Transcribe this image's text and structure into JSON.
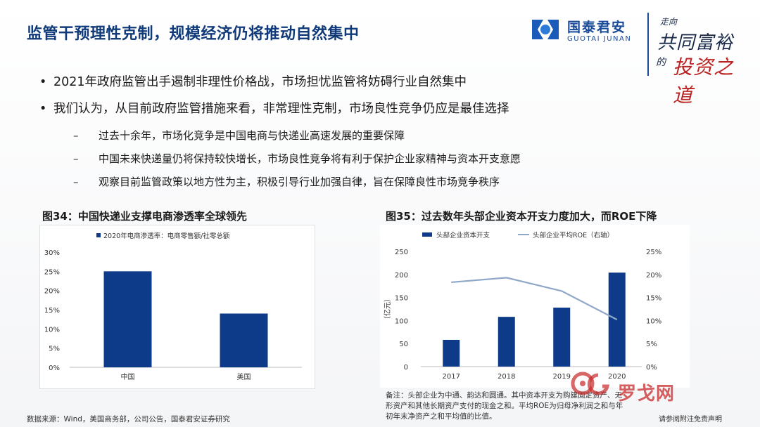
{
  "title": "监管干预理性克制，规模经济仍将推动自然集中",
  "logo": {
    "cn": "国泰君安",
    "en": "GUOTAI JUNAN"
  },
  "slogan": {
    "line1": "走向",
    "line2": "共同富裕",
    "line3": "的",
    "line4": "投资之道"
  },
  "bullets": [
    {
      "level": 1,
      "text": "2021年政府监管出手遏制非理性价格战，市场担忧监管将妨碍行业自然集中"
    },
    {
      "level": 1,
      "text": "我们认为，从目前政府监管措施来看，非常理性克制，市场良性竞争仍应是最佳选择"
    },
    {
      "level": 2,
      "text": "过去十余年，市场化竞争是中国电商与快递业高速发展的重要保障"
    },
    {
      "level": 2,
      "text": "中国未来快递量仍将保持较快增长，市场良性竞争将有利于保护企业家精神与资本开支意愿"
    },
    {
      "level": 2,
      "text": "观察目前监管政策以地方性为主，积极引导行业加强自律，旨在保障良性市场竞争秩序"
    }
  ],
  "fig34": {
    "title": "图34：中国快递业支撑电商渗透率全球领先"
  },
  "fig35": {
    "title": "图35：过去数年头部企业资本开支力度加大，而ROE下降"
  },
  "chart_data": [
    {
      "type": "bar",
      "categories": [
        "中国",
        "美国"
      ],
      "series": [
        {
          "name": "2020年电商渗透率：电商零售额/社零总额",
          "values": [
            25,
            14
          ],
          "color": "#0d3b8a"
        }
      ],
      "ylim": [
        0,
        30
      ],
      "yticks": [
        "0%",
        "5%",
        "10%",
        "15%",
        "20%",
        "25%",
        "30%"
      ],
      "ytick_values": [
        0,
        5,
        10,
        15,
        20,
        25,
        30
      ],
      "legend": "top-left",
      "grid": false
    },
    {
      "type": "bar",
      "categories": [
        "2017",
        "2018",
        "2019",
        "2020"
      ],
      "series": [
        {
          "name": "头部企业资本开支",
          "type": "bar",
          "axis": "left",
          "values": [
            58,
            108,
            128,
            204
          ],
          "color": "#0d3b8a"
        },
        {
          "name": "头部企业平均ROE（右轴）",
          "type": "line",
          "axis": "right",
          "values": [
            18.3,
            19.3,
            16.4,
            10.2
          ],
          "color": "#8fa8c8"
        }
      ],
      "ylabel": "（亿元）",
      "ylim": [
        0,
        250
      ],
      "yticks": [
        "0",
        "50",
        "100",
        "150",
        "200",
        "250"
      ],
      "ytick_values": [
        0,
        50,
        100,
        150,
        200,
        250
      ],
      "y2lim": [
        0,
        25
      ],
      "y2ticks": [
        "0%",
        "5%",
        "10%",
        "15%",
        "20%",
        "25%"
      ],
      "y2tick_values": [
        0,
        5,
        10,
        15,
        20,
        25
      ],
      "legend": "top",
      "grid": false
    }
  ],
  "note": {
    "line1": "备注：头部企业为中通、韵达和圆通。其中资本开支为购建固定资产、无",
    "line2": "形资产和其他长期资产支付的现金之和。平均ROE为归母净利润之和与年",
    "line3": "初年末净资产之和平均值的比值。"
  },
  "source": "数据来源：Wind，美国商务部，公司公告，国泰君安证券研究",
  "disclaimer": "请参阅附注免责声明",
  "watermark": "罗戈网",
  "colors": {
    "title": "#103a7a",
    "bar": "#0d3b8a",
    "line": "#8fa8c8"
  }
}
